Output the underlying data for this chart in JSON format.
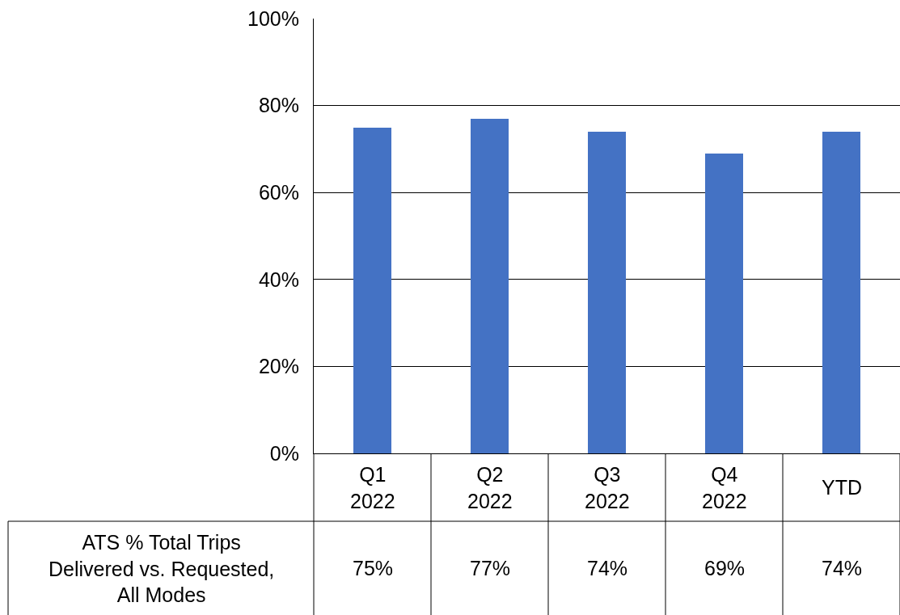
{
  "chart_data": {
    "type": "bar",
    "categories": [
      "Q1\n2022",
      "Q2\n2022",
      "Q3\n2022",
      "Q4\n2022",
      "YTD"
    ],
    "series": [
      {
        "name": "ATS % Total Trips Delivered vs. Requested, All Modes",
        "color": "#4472c4",
        "values": [
          75,
          77,
          74,
          69,
          74
        ],
        "value_labels": [
          "75%",
          "77%",
          "74%",
          "69%",
          "74%"
        ]
      }
    ],
    "ylim": [
      0,
      100
    ],
    "yticks": [
      {
        "value": 0,
        "label": "0%"
      },
      {
        "value": 20,
        "label": "20%"
      },
      {
        "value": 40,
        "label": "40%"
      },
      {
        "value": 60,
        "label": "60%"
      },
      {
        "value": 80,
        "label": "80%"
      },
      {
        "value": 100,
        "label": "100%"
      }
    ],
    "grid": "y",
    "legend": false
  }
}
